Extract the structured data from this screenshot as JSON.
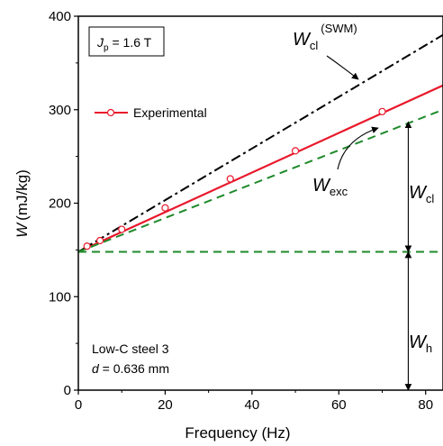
{
  "chart_data": {
    "type": "line",
    "xlabel": "Frequency (Hz)",
    "ylabel_symbol": "W",
    "ylabel_unit": "(mJ/kg)",
    "xlim": [
      0,
      84
    ],
    "ylim": [
      0,
      400
    ],
    "xticks": [
      0,
      20,
      40,
      60,
      80
    ],
    "yticks": [
      0,
      100,
      200,
      300,
      400
    ],
    "grid": false,
    "legend": {
      "position": "upper-left",
      "entries": [
        "Experimental"
      ]
    },
    "series": [
      {
        "name": "Experimental",
        "style": "solid",
        "color": "#e8182b",
        "marker": "open-circle",
        "points": [
          [
            2,
            154
          ],
          [
            5,
            160
          ],
          [
            10,
            172
          ],
          [
            20,
            195
          ],
          [
            35,
            226
          ],
          [
            50,
            256
          ],
          [
            70,
            298
          ]
        ],
        "fit_line": [
          [
            0,
            148
          ],
          [
            84,
            326
          ]
        ]
      },
      {
        "style": "dash-dot",
        "color": "#000000",
        "line": [
          [
            0,
            148
          ],
          [
            84,
            380
          ]
        ]
      },
      {
        "style": "dashed",
        "color": "#1f8a2a",
        "line": [
          [
            0,
            148
          ],
          [
            84,
            300
          ]
        ]
      },
      {
        "style": "dashed",
        "color": "#1f8a2a",
        "line": [
          [
            0,
            148
          ],
          [
            84,
            148
          ]
        ]
      }
    ],
    "annotations": {
      "jp_box": {
        "symbol": "J",
        "sub": "p",
        "text": " = 1.6 T"
      },
      "wcl_swm": {
        "symbol": "W",
        "sub": "cl",
        "sup": "(SWM)"
      },
      "wexc": {
        "symbol": "W",
        "sub": "exc"
      },
      "wcl": {
        "symbol": "W",
        "sub": "cl"
      },
      "wh": {
        "symbol": "W",
        "sub": "h"
      },
      "material": "Low-C steel 3",
      "thickness_symbol": "d",
      "thickness_value": " = 0.636 mm"
    },
    "arrows": {
      "x": 76,
      "wh_range": [
        0,
        148
      ],
      "wcl_range": [
        148,
        287
      ]
    }
  },
  "colors": {
    "experimental": "#e8182b",
    "swm": "#000000",
    "green": "#1f8a2a"
  }
}
